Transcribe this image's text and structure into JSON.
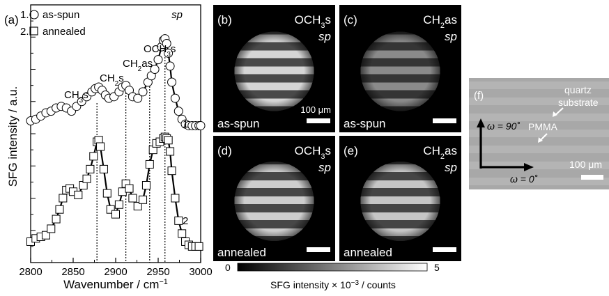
{
  "panel_a": {
    "label": "(a)",
    "legend": [
      {
        "num": "1.",
        "text": "as-spun",
        "marker": "circle"
      },
      {
        "num": "2.",
        "text": "annealed",
        "marker": "square"
      }
    ],
    "polarization": "sp",
    "y_axis_label": "SFG intensity / a.u.",
    "x_axis_label_main": "Wavenumber / cm",
    "x_axis_label_sup": "−1",
    "curve_labels": [
      "1",
      "2"
    ],
    "peaks": [
      {
        "main": "CH",
        "sub": "3",
        "tail": "s"
      },
      {
        "main": "CH",
        "sub": "2",
        "tail": "s"
      },
      {
        "main": "CH",
        "sub": "2",
        "tail": "as"
      },
      {
        "main": "OCH",
        "sub": "3",
        "tail": "s"
      }
    ]
  },
  "chart_data": {
    "type": "scatter",
    "xlabel": "Wavenumber / cm−1",
    "ylabel": "SFG intensity / a.u.",
    "xlim": [
      2800,
      3000
    ],
    "xticks": [
      2800,
      2850,
      2900,
      2950,
      3000
    ],
    "peak_positions": [
      2878,
      2912,
      2940,
      2958
    ],
    "series": [
      {
        "name": "as-spun",
        "marker": "circle",
        "x": [
          2800,
          2806,
          2812,
          2818,
          2824,
          2830,
          2836,
          2842,
          2848,
          2854,
          2860,
          2866,
          2872,
          2876,
          2880,
          2884,
          2888,
          2892,
          2898,
          2904,
          2908,
          2912,
          2916,
          2920,
          2926,
          2932,
          2938,
          2942,
          2946,
          2950,
          2954,
          2956,
          2958,
          2960,
          2962,
          2964,
          2966,
          2970,
          2974,
          2978,
          2982,
          2986,
          2990,
          2994,
          2998,
          3000
        ],
        "y": [
          8.8,
          8.9,
          9.1,
          9.3,
          9.4,
          9.6,
          9.7,
          9.6,
          9.4,
          9.7,
          10.0,
          10.3,
          10.6,
          10.8,
          10.9,
          10.7,
          10.4,
          10.2,
          10.3,
          10.6,
          10.9,
          11.0,
          10.7,
          10.3,
          10.2,
          10.6,
          11.2,
          11.6,
          12.0,
          12.6,
          13.4,
          13.8,
          13.9,
          13.6,
          13.0,
          12.2,
          11.2,
          10.2,
          9.4,
          8.9,
          8.6,
          8.5,
          8.5,
          8.5,
          8.5,
          8.5
        ]
      },
      {
        "name": "annealed",
        "marker": "square",
        "x": [
          2800,
          2806,
          2812,
          2818,
          2824,
          2830,
          2834,
          2838,
          2842,
          2846,
          2850,
          2856,
          2862,
          2866,
          2870,
          2874,
          2878,
          2880,
          2882,
          2886,
          2890,
          2894,
          2900,
          2904,
          2908,
          2912,
          2916,
          2920,
          2926,
          2932,
          2936,
          2940,
          2944,
          2948,
          2952,
          2956,
          2958,
          2960,
          2962,
          2964,
          2966,
          2970,
          2974,
          2978,
          2982,
          2986,
          2990,
          2994,
          2998
        ],
        "y": [
          1.3,
          1.5,
          1.6,
          1.7,
          2.1,
          2.7,
          3.3,
          4.0,
          4.5,
          4.6,
          4.4,
          4.2,
          4.8,
          5.2,
          5.8,
          6.6,
          7.5,
          7.6,
          7.2,
          5.8,
          4.3,
          3.3,
          3.0,
          3.6,
          4.4,
          4.9,
          4.6,
          4.0,
          3.5,
          3.9,
          4.8,
          6.1,
          7.0,
          7.4,
          7.5,
          7.7,
          7.8,
          7.7,
          7.6,
          6.9,
          5.7,
          4.0,
          2.6,
          1.8,
          1.3,
          1.1,
          1.0,
          1.0,
          1.0
        ]
      }
    ]
  },
  "images": [
    {
      "label": "(b)",
      "species_main": "OCH",
      "species_sub": "3",
      "species_tail": "s",
      "pol": "sp",
      "state": "as-spun",
      "scale_text": "100 μm",
      "stripe_brightness": 0.95
    },
    {
      "label": "(c)",
      "species_main": "CH",
      "species_sub": "2",
      "species_tail": "as",
      "pol": "sp",
      "state": "as-spun",
      "scale_text": "",
      "stripe_brightness": 0.45
    },
    {
      "label": "(d)",
      "species_main": "OCH",
      "species_sub": "3",
      "species_tail": "s",
      "pol": "sp",
      "state": "annealed",
      "scale_text": "",
      "stripe_brightness": 0.9
    },
    {
      "label": "(e)",
      "species_main": "CH",
      "species_sub": "2",
      "species_tail": "as",
      "pol": "sp",
      "state": "annealed",
      "scale_text": "",
      "stripe_brightness": 0.85
    }
  ],
  "colorbar": {
    "min_label": "0",
    "max_label": "5",
    "label_pre": "SFG intensity × 10",
    "label_sup": "−3",
    "label_post": " / counts"
  },
  "panel_f": {
    "label": "(f)",
    "omega_90": "ω = 90˚",
    "omega_0": "ω = 0˚",
    "quartz": [
      "quartz",
      "substrate"
    ],
    "pmma": "PMMA",
    "scale_text": "100 μm"
  }
}
